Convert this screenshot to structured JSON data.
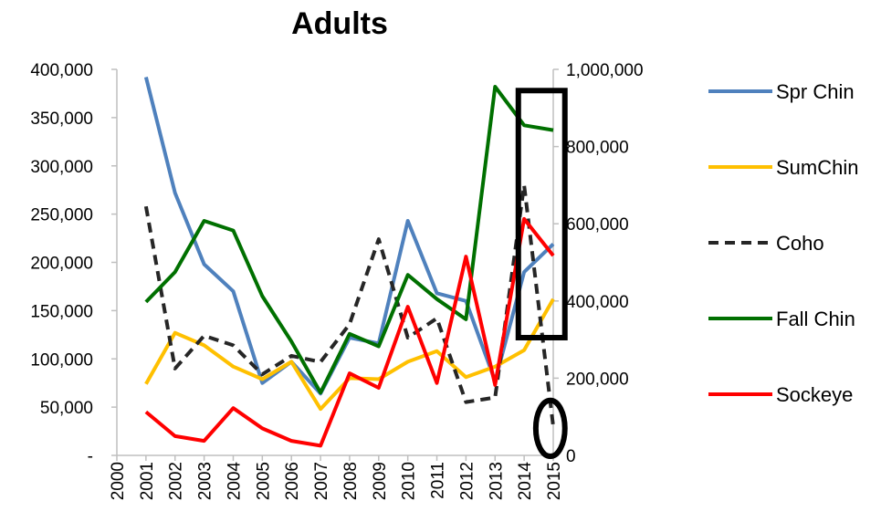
{
  "chart_data": {
    "type": "line",
    "title": "Adults",
    "x": [
      2000,
      2001,
      2002,
      2003,
      2004,
      2005,
      2006,
      2007,
      2008,
      2009,
      2010,
      2011,
      2012,
      2013,
      2014,
      2015
    ],
    "x_tick_labels": [
      "2000",
      "2001",
      "2002",
      "2003",
      "2004",
      "2005",
      "2006",
      "2007",
      "2008",
      "2009",
      "2010",
      "2011",
      "2012",
      "2013",
      "2014",
      "2015"
    ],
    "y_left": {
      "range": [
        0,
        400000
      ],
      "tick_labels": [
        "-",
        "50,000",
        "100,000",
        "150,000",
        "200,000",
        "250,000",
        "300,000",
        "350,000",
        "400,000"
      ]
    },
    "y_right": {
      "range": [
        0,
        1000000
      ],
      "tick_labels": [
        "0",
        "200,000",
        "400,000",
        "600,000",
        "800,000",
        "1,000,000"
      ]
    },
    "grid": false,
    "legend_position": "right",
    "series": [
      {
        "name": "Spr Chin",
        "axis": "left",
        "color": "#4f81bd",
        "dash": false,
        "x": [
          2001,
          2002,
          2003,
          2004,
          2005,
          2006,
          2007,
          2008,
          2009,
          2010,
          2011,
          2012,
          2013,
          2014,
          2015
        ],
        "values": [
          392000,
          272000,
          198000,
          170000,
          75000,
          97000,
          64000,
          122000,
          116000,
          243000,
          168000,
          160000,
          77000,
          190000,
          219000
        ]
      },
      {
        "name": "SumChin",
        "axis": "left",
        "color": "#ffc000",
        "dash": false,
        "x": [
          2001,
          2002,
          2003,
          2004,
          2005,
          2006,
          2007,
          2008,
          2009,
          2010,
          2011,
          2012,
          2013,
          2014,
          2015
        ],
        "values": [
          74000,
          127000,
          114000,
          92000,
          79000,
          97000,
          48000,
          80000,
          79000,
          97000,
          108000,
          81000,
          92000,
          109000,
          162000
        ]
      },
      {
        "name": "Coho",
        "axis": "right",
        "color": "#262626",
        "dash": true,
        "x": [
          2001,
          2002,
          2003,
          2004,
          2005,
          2006,
          2007,
          2008,
          2009,
          2010,
          2011,
          2012,
          2013,
          2014,
          2015
        ],
        "values": [
          645000,
          225000,
          310000,
          285000,
          210000,
          258000,
          242000,
          340000,
          560000,
          305000,
          355000,
          138000,
          150000,
          700000,
          75000
        ]
      },
      {
        "name": "Fall Chin",
        "axis": "left",
        "color": "#007000",
        "dash": false,
        "x": [
          2001,
          2002,
          2003,
          2004,
          2005,
          2006,
          2007,
          2008,
          2009,
          2010,
          2011,
          2012,
          2013,
          2014,
          2015
        ],
        "values": [
          159000,
          190000,
          243000,
          233000,
          165000,
          118000,
          65000,
          126000,
          113000,
          187000,
          162000,
          141000,
          382000,
          342000,
          337000
        ]
      },
      {
        "name": "Sockeye",
        "axis": "left",
        "color": "#ff0000",
        "dash": false,
        "x": [
          2001,
          2002,
          2003,
          2004,
          2005,
          2006,
          2007,
          2008,
          2009,
          2010,
          2011,
          2012,
          2013,
          2014,
          2015
        ],
        "values": [
          45000,
          20000,
          15000,
          49000,
          28000,
          15000,
          10000,
          85000,
          70000,
          154000,
          75000,
          206000,
          73000,
          245000,
          207000
        ]
      }
    ],
    "annotations": [
      {
        "shape": "rectangle",
        "color": "#000000",
        "x_range": [
          2013.8,
          2015.4
        ],
        "y_left_range": [
          122000,
          378000
        ]
      },
      {
        "shape": "ellipse",
        "color": "#000000",
        "cx": 2014.9,
        "cy_left": 28000,
        "rx_years": 0.5,
        "ry_left": 29000
      }
    ]
  }
}
